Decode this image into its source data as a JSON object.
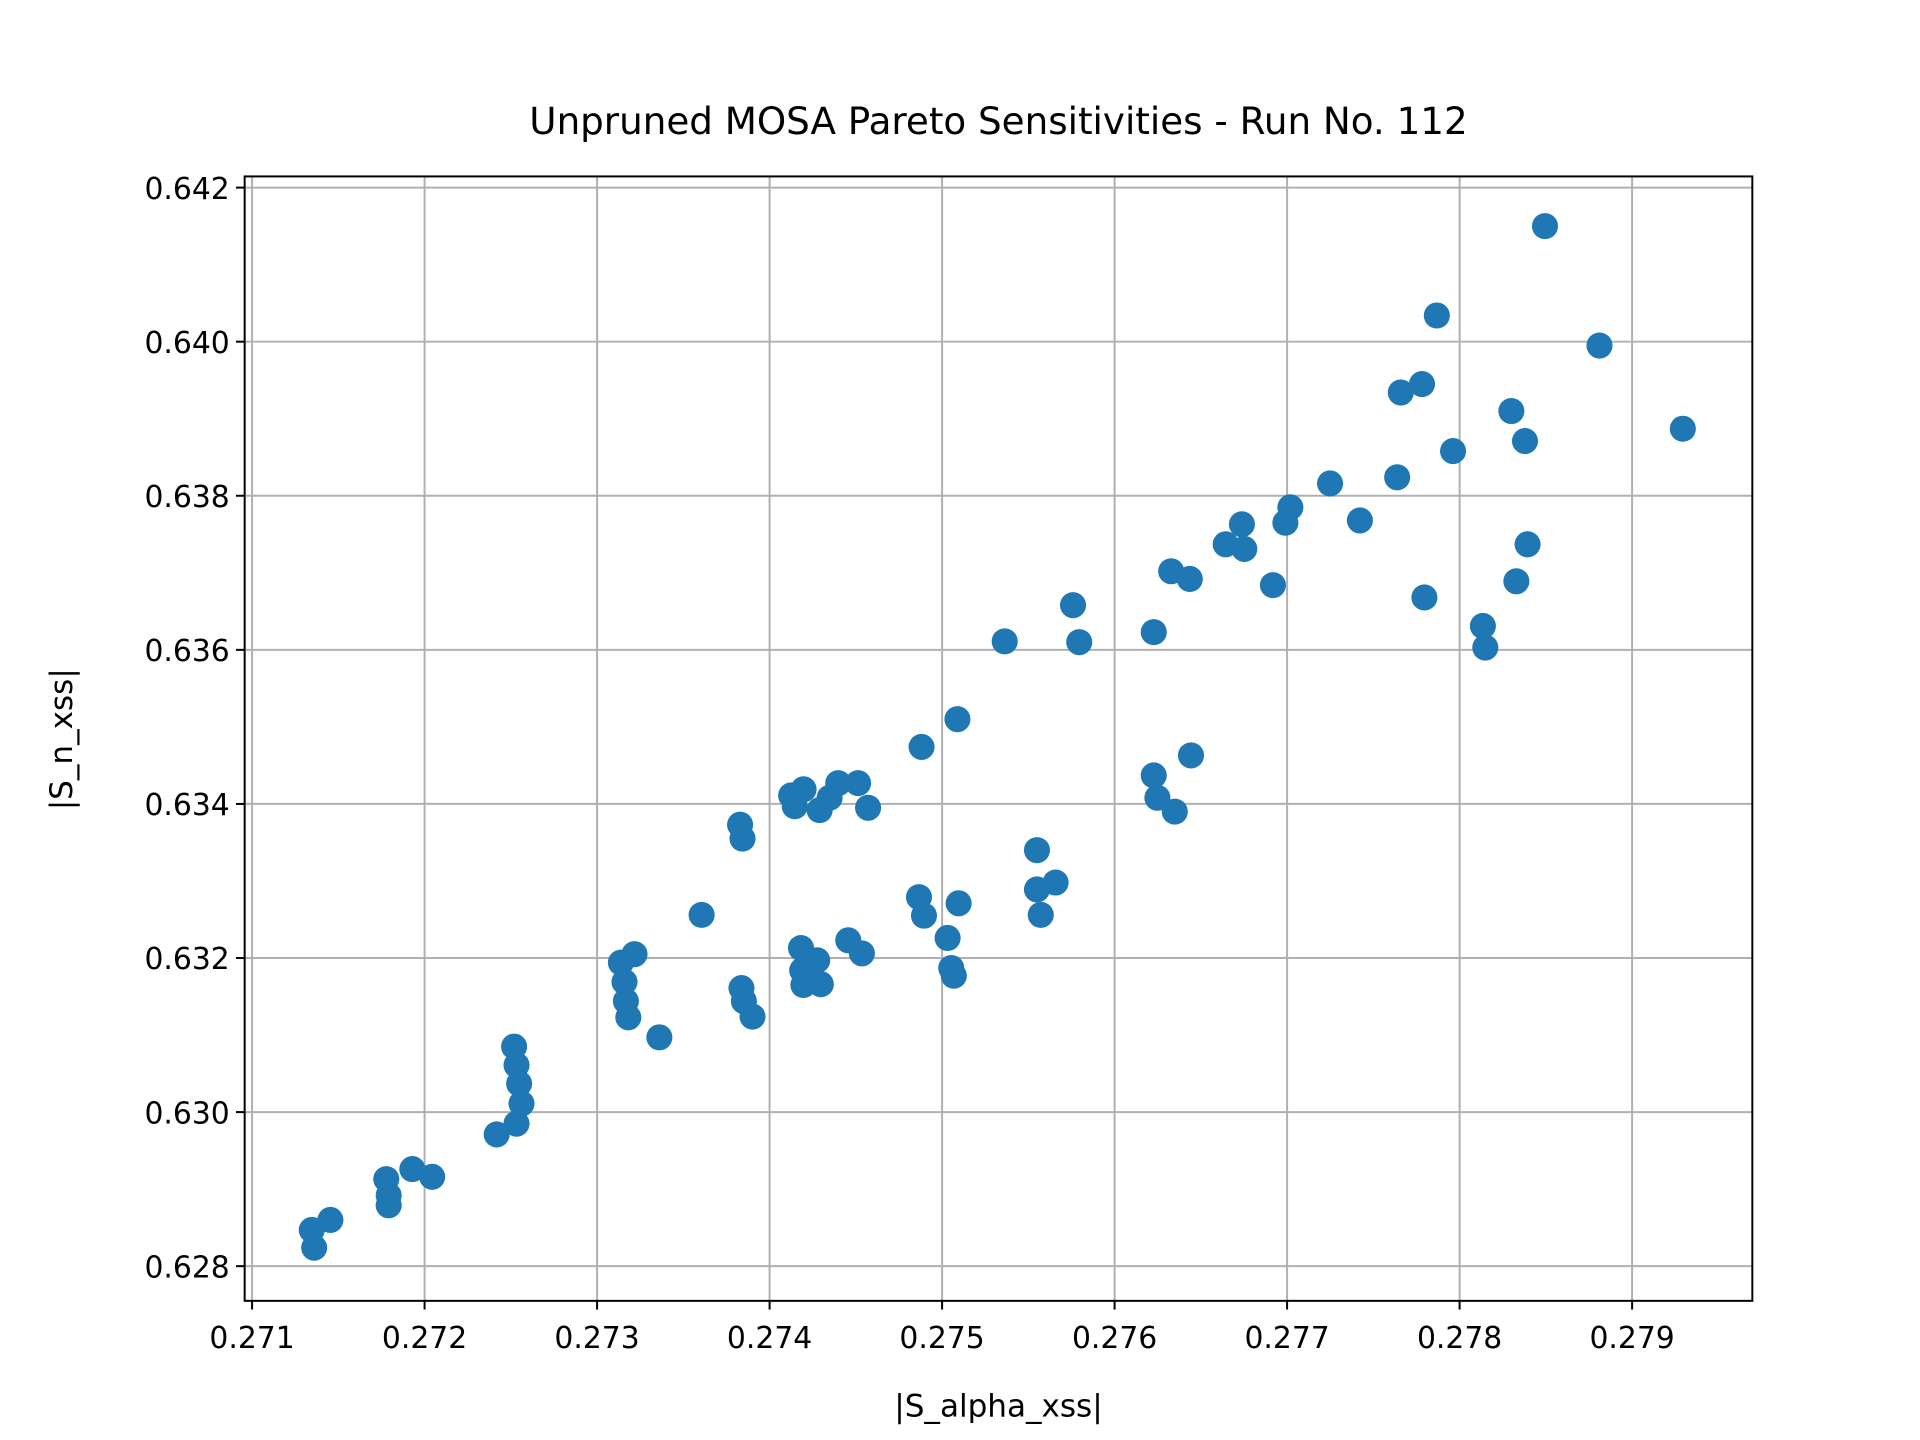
{
  "chart_data": {
    "type": "scatter",
    "title": "Unpruned MOSA Pareto Sensitivities - Run No. 112",
    "x_label": "|S_alpha_xss|",
    "y_label": "|S_n_xss|",
    "color": "#1f77b4",
    "grid": true,
    "xlim": [
      0.270957,
      0.279697
    ],
    "ylim": [
      0.62755,
      0.642145
    ],
    "xticks": [
      0.271,
      0.272,
      0.273,
      0.274,
      0.275,
      0.276,
      0.277,
      0.278,
      0.279
    ],
    "yticks": [
      0.628,
      {
        "value": 0.63,
        "label": "0.630"
      },
      0.632,
      0.634,
      0.636,
      0.638,
      {
        "value": 0.64,
        "label": "0.640"
      },
      0.642
    ],
    "x": [
      0.278495,
      0.277868,
      0.278811,
      0.277659,
      0.277782,
      0.2783,
      0.279294,
      0.278379,
      0.277962,
      0.277638,
      0.277249,
      0.277019,
      0.277422,
      0.27699,
      0.276738,
      0.276644,
      0.276752,
      0.278394,
      0.276328,
      0.276436,
      0.276918,
      0.278329,
      0.277796,
      0.275759,
      0.278135,
      0.278149,
      0.276227,
      0.275363,
      0.275795,
      0.275089,
      0.274881,
      0.276443,
      0.276227,
      0.276248,
      0.276349,
      0.274513,
      0.274398,
      0.274197,
      0.274125,
      0.274146,
      0.274348,
      0.27429,
      0.274571,
      0.273829,
      0.273843,
      0.27555,
      0.275658,
      0.27555,
      0.275572,
      0.274866,
      0.274895,
      0.275096,
      0.273606,
      0.275032,
      0.274456,
      0.274535,
      0.274182,
      0.274276,
      0.274189,
      0.274196,
      0.274297,
      0.275053,
      0.275068,
      0.273217,
      0.273138,
      0.273159,
      0.273167,
      0.273181,
      0.273837,
      0.273851,
      0.273901,
      0.273361,
      0.272519,
      0.272533,
      0.272548,
      0.272562,
      0.272533,
      0.272418,
      0.271929,
      0.272044,
      0.271778,
      0.271792,
      0.271792,
      0.271454,
      0.271346,
      0.27136
    ],
    "y": [
      0.6415,
      0.64034,
      0.63995,
      0.63934,
      0.63945,
      0.6391,
      0.63887,
      0.63871,
      0.63858,
      0.63824,
      0.63816,
      0.63785,
      0.63768,
      0.63765,
      0.63763,
      0.63737,
      0.63731,
      0.63737,
      0.63702,
      0.63692,
      0.63684,
      0.63689,
      0.63668,
      0.63658,
      0.63631,
      0.63603,
      0.63623,
      0.63611,
      0.6361,
      0.6351,
      0.63474,
      0.63463,
      0.63437,
      0.63408,
      0.6339,
      0.63427,
      0.63427,
      0.63419,
      0.63411,
      0.63397,
      0.63408,
      0.63392,
      0.63395,
      0.63373,
      0.63355,
      0.6334,
      0.63298,
      0.63289,
      0.63256,
      0.63279,
      0.63255,
      0.63271,
      0.63256,
      0.63226,
      0.63223,
      0.63206,
      0.63213,
      0.63197,
      0.63184,
      0.63165,
      0.63166,
      0.63187,
      0.63177,
      0.63205,
      0.63194,
      0.63169,
      0.63144,
      0.63123,
      0.63161,
      0.63144,
      0.63124,
      0.63097,
      0.63085,
      0.63061,
      0.63037,
      0.63011,
      0.62985,
      0.62971,
      0.62926,
      0.62916,
      0.62913,
      0.62892,
      0.62879,
      0.6286,
      0.62847,
      0.62824
    ]
  }
}
